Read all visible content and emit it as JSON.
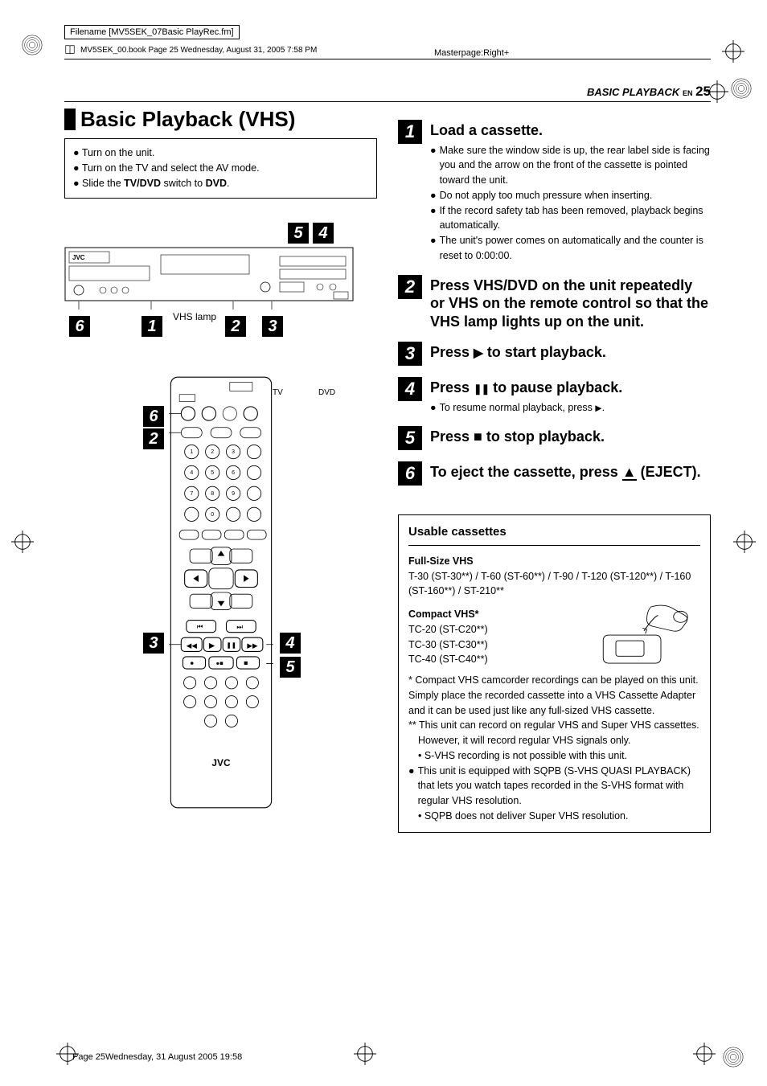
{
  "meta": {
    "filename": "Filename [MV5SEK_07Basic PlayRec.fm]",
    "book_line": "MV5SEK_00.book  Page 25  Wednesday, August 31, 2005  7:58 PM",
    "masterpage": "Masterpage:Right+",
    "footer": "Page 25Wednesday, 31 August 2005  19:58"
  },
  "header": {
    "section": "BASIC PLAYBACK",
    "lang": "EN",
    "page": "25"
  },
  "left": {
    "title": "Basic Playback (VHS)",
    "intro": [
      "Turn on the unit.",
      "Turn on the TV and select the AV mode.",
      "Slide the <b>TV/DVD</b> switch to <b>DVD</b>."
    ],
    "vhs_lamp_label": "VHS lamp",
    "tv_label": "TV",
    "dvd_label": "DVD",
    "jvc": "JVC",
    "unit_callouts": {
      "top_right_a": "5",
      "top_right_b": "4",
      "bottom_a": "6",
      "bottom_b": "1",
      "bottom_c": "2",
      "bottom_d": "3"
    },
    "remote_callouts": {
      "r1": "6",
      "r2": "2",
      "r3": "3",
      "r4": "4",
      "r5": "5"
    }
  },
  "steps": [
    {
      "n": "1",
      "title": "Load a cassette.",
      "body": [
        "Make sure the window side is up, the rear label side is facing you and the arrow on the front of the cassette is pointed toward the unit.",
        "Do not apply too much pressure when inserting.",
        "If the record safety tab has been removed, playback begins automatically.",
        "The unit's power comes on automatically and the counter is reset to 0:00:00."
      ]
    },
    {
      "n": "2",
      "title": "Press VHS/DVD on the unit repeatedly or VHS on the remote control so that the VHS lamp lights up on the unit.",
      "body": []
    },
    {
      "n": "3",
      "title": "Press ▶ to start playback.",
      "symbol": "play",
      "body": []
    },
    {
      "n": "4",
      "title": "Press ❚❚ to pause playback.",
      "symbol": "pause",
      "body": [
        "To resume normal playback, press ▶."
      ],
      "body_symbol": "play"
    },
    {
      "n": "5",
      "title": "Press ■ to stop playback.",
      "symbol": "stop",
      "body": []
    },
    {
      "n": "6",
      "title": "To eject the cassette, press ▲ (EJECT).",
      "symbol": "eject",
      "body": []
    }
  ],
  "infobox": {
    "heading": "Usable cassettes",
    "full_label": "Full-Size VHS",
    "full_text": "T-30 (ST-30**) / T-60 (ST-60**) / T-90 / T-120 (ST-120**) / T-160 (ST-160**) / ST-210**",
    "compact_label": "Compact VHS*",
    "compact_lines": [
      "TC-20 (ST-C20**)",
      "TC-30 (ST-C30**)",
      "TC-40 (ST-C40**)"
    ],
    "note_star": "*  Compact VHS camcorder recordings can be played on this unit. Simply place the recorded cassette into a VHS Cassette Adapter and it can be used just like any full-sized VHS cassette.",
    "note_dstar": "** This unit can record on regular VHS and Super VHS cassettes.",
    "note_dstar2": "However, it will record regular VHS signals only.",
    "note_dstar3": "• S-VHS recording is not possible with this unit.",
    "sqpb1": "This unit is equipped with SQPB (S-VHS QUASI PLAYBACK) that lets you watch tapes recorded in the S-VHS format with regular VHS resolution.",
    "sqpb2": "• SQPB does not deliver Super VHS resolution."
  },
  "colors": {
    "black": "#000000",
    "white": "#ffffff"
  }
}
